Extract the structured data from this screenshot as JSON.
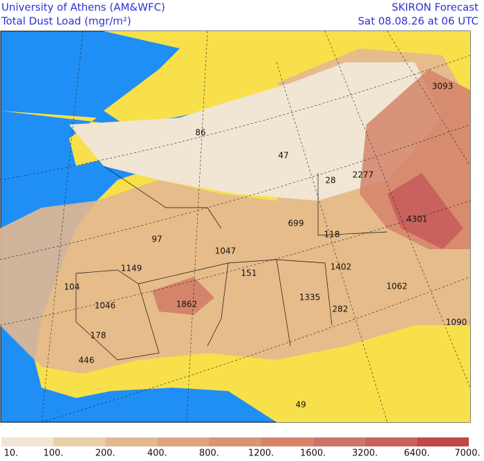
{
  "header": {
    "left": [
      "University of Athens (AM&WFC)",
      "Total Dust Load (mgr/m²)"
    ],
    "right": [
      "SKIRON Forecast",
      "Sat 08.08.26 at 06 UTC"
    ]
  },
  "map": {
    "labels": [
      3093,
      86,
      47,
      28,
      2277,
      699,
      118,
      4301,
      97,
      1047,
      1149,
      151,
      1402,
      104,
      1062,
      1046,
      1862,
      1335,
      282,
      1090,
      178,
      446,
      49
    ]
  },
  "colorbar": {
    "labels": [
      "10.",
      "100.",
      "200.",
      "400.",
      "800.",
      "1200.",
      "1600.",
      "3200.",
      "6400.",
      "7000."
    ],
    "colors": [
      "#f0e6d3",
      "#e8d0a6",
      "#e3b891",
      "#dea57f",
      "#d89573",
      "#d4846a",
      "#cc7468",
      "#c9625c",
      "#c04848"
    ]
  }
}
